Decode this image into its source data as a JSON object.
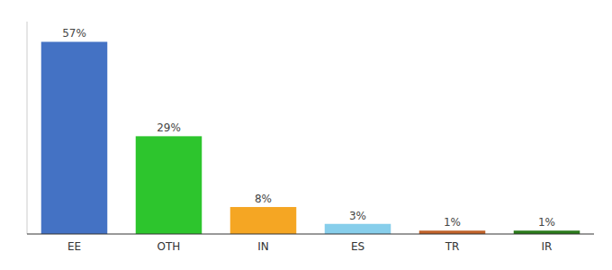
{
  "chart_data": {
    "type": "bar",
    "categories": [
      "EE",
      "OTH",
      "IN",
      "ES",
      "TR",
      "IR"
    ],
    "values": [
      57,
      29,
      8,
      3,
      1,
      1
    ],
    "value_labels": [
      "57%",
      "29%",
      "8%",
      "3%",
      "1%",
      "1%"
    ],
    "colors": [
      "#4472c4",
      "#2dc52d",
      "#f5a623",
      "#87ceeb",
      "#c0622a",
      "#2a7a1a"
    ],
    "ylim": [
      0,
      63
    ],
    "data_labels": true,
    "tick_labels": "x",
    "grid": false
  }
}
